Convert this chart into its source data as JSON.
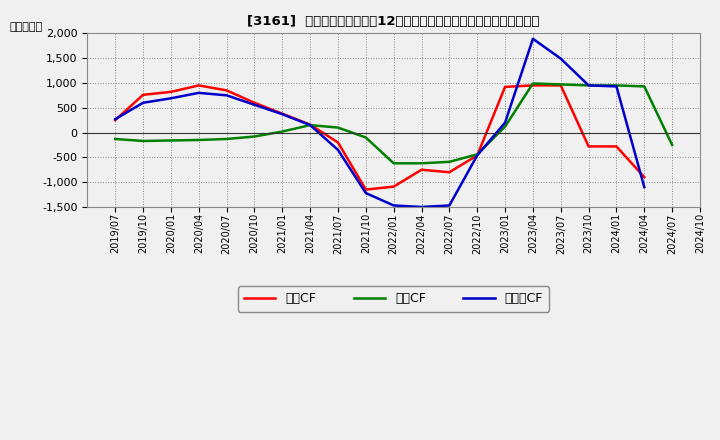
{
  "title": "[3161]  キャッシュフローの12か月移動合計の対前年同期増減額の推移",
  "ylabel": "（百万円）",
  "ylim": [
    -1500,
    2000
  ],
  "yticks": [
    -1500,
    -1000,
    -500,
    0,
    500,
    1000,
    1500,
    2000
  ],
  "background_color": "#f0f0f0",
  "plot_bg_color": "#f0f0f0",
  "grid_color": "#aaaaaa",
  "x_labels": [
    "2019/07",
    "2019/10",
    "2020/01",
    "2020/04",
    "2020/07",
    "2020/10",
    "2021/01",
    "2021/04",
    "2021/07",
    "2021/10",
    "2022/01",
    "2022/04",
    "2022/07",
    "2022/10",
    "2023/01",
    "2023/04",
    "2023/07",
    "2023/10",
    "2024/01",
    "2024/04",
    "2024/07",
    "2024/10"
  ],
  "operating_cf": [
    250,
    760,
    820,
    950,
    850,
    600,
    380,
    160,
    -200,
    -1150,
    -1090,
    -750,
    -800,
    -460,
    920,
    950,
    950,
    -280,
    -280,
    -900,
    null,
    null
  ],
  "investing_cf": [
    -130,
    -170,
    -160,
    -150,
    -130,
    -80,
    20,
    150,
    100,
    -100,
    -620,
    -620,
    -590,
    -440,
    120,
    990,
    970,
    950,
    950,
    930,
    -250,
    null
  ],
  "free_cf": [
    270,
    600,
    690,
    800,
    750,
    560,
    370,
    150,
    -350,
    -1220,
    -1470,
    -1500,
    -1470,
    -460,
    200,
    1890,
    1490,
    950,
    930,
    -1100,
    null,
    null
  ],
  "line_colors": {
    "operating": "#ff0000",
    "investing": "#008000",
    "free": "#0000cc"
  },
  "legend_labels": {
    "operating": "営業CF",
    "investing": "投資CF",
    "free": "フリーCF"
  },
  "line_width": 1.8
}
